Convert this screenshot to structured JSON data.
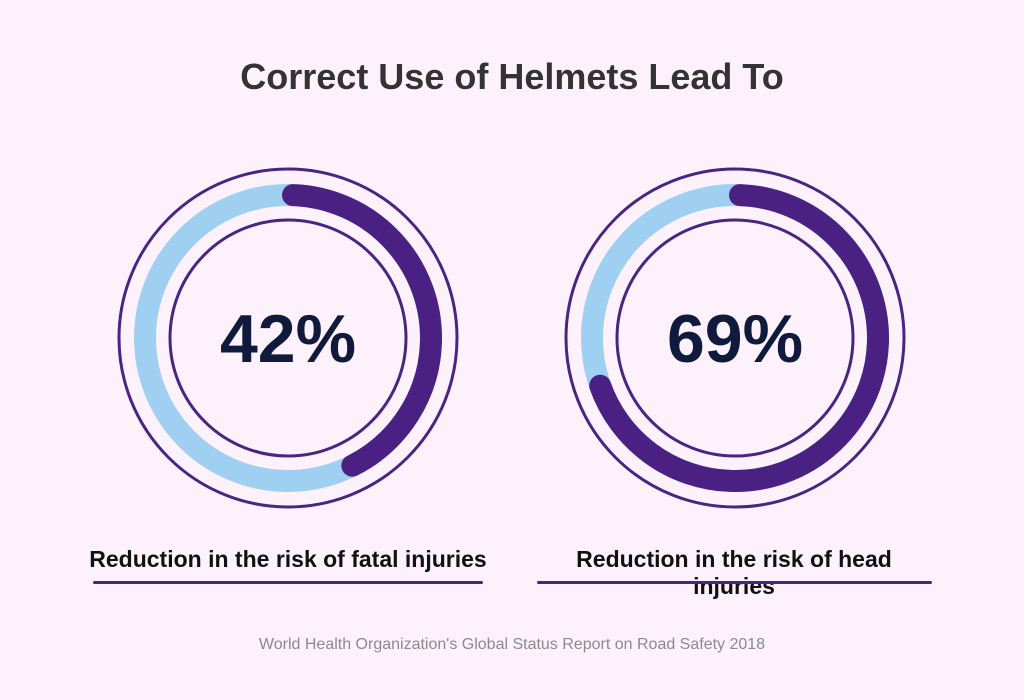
{
  "title": "Correct Use of Helmets Lead To",
  "chart_data": [
    {
      "type": "pie",
      "subtype": "donut",
      "value": 42,
      "unit": "%",
      "display": "42%",
      "label": "Reduction in the risk of fatal injuries"
    },
    {
      "type": "pie",
      "subtype": "donut",
      "value": 69,
      "unit": "%",
      "display": "69%",
      "label": "Reduction in the risk of head injuries"
    }
  ],
  "colors": {
    "progress": "#4b2083",
    "track": "#9fd0f2",
    "ring": "#4b2483",
    "value_text": "#0f1a3d",
    "background": "#fdf2fc"
  },
  "footer": "World Health Organization's Global Status Report on Road Safety 2018"
}
